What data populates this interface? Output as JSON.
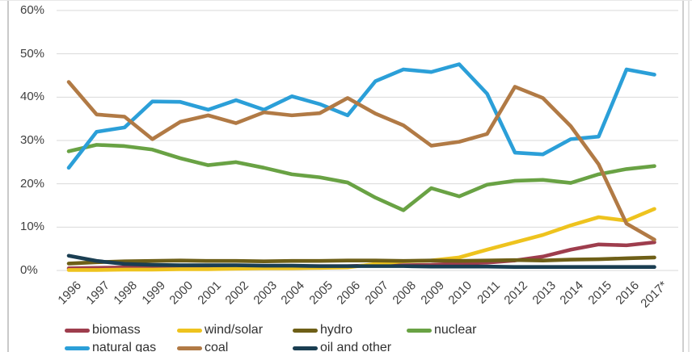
{
  "chart_data": {
    "type": "line",
    "title": "",
    "xlabel": "",
    "ylabel": "",
    "x": [
      "1996",
      "1997",
      "1998",
      "1999",
      "2000",
      "2001",
      "2002",
      "2003",
      "2004",
      "2005",
      "2006",
      "2007",
      "2008",
      "2009",
      "2010",
      "2011",
      "2012",
      "2013",
      "2014",
      "2015",
      "2016",
      "2017*"
    ],
    "ylim": [
      0,
      60
    ],
    "yticks": [
      "0%",
      "10%",
      "20%",
      "30%",
      "40%",
      "50%",
      "60%"
    ],
    "grid": true,
    "legend_position": "bottom",
    "series": [
      {
        "name": "biomass",
        "color": "#9e3d4d",
        "values": [
          0.5,
          0.6,
          0.7,
          0.8,
          0.8,
          0.9,
          0.9,
          1.0,
          1.0,
          1.0,
          1.0,
          1.2,
          1.2,
          1.3,
          1.6,
          1.8,
          2.3,
          3.2,
          4.8,
          6.0,
          5.8,
          6.5
        ]
      },
      {
        "name": "wind/solar",
        "color": "#eec31e",
        "values": [
          0.1,
          0.1,
          0.2,
          0.2,
          0.3,
          0.3,
          0.4,
          0.5,
          0.5,
          0.6,
          0.7,
          1.5,
          2.1,
          2.3,
          3.0,
          4.8,
          6.5,
          8.2,
          10.4,
          12.3,
          11.5,
          14.2
        ]
      },
      {
        "name": "hydro",
        "color": "#6e5f17",
        "values": [
          1.6,
          1.9,
          2.1,
          2.2,
          2.3,
          2.2,
          2.2,
          2.1,
          2.2,
          2.2,
          2.3,
          2.3,
          2.2,
          2.3,
          2.2,
          2.3,
          2.4,
          2.3,
          2.5,
          2.6,
          2.8,
          3.0
        ]
      },
      {
        "name": "nuclear",
        "color": "#69a244",
        "values": [
          27.5,
          29.0,
          28.7,
          27.9,
          25.9,
          24.3,
          25.0,
          23.7,
          22.2,
          21.5,
          20.3,
          16.8,
          13.9,
          19.0,
          17.1,
          19.8,
          20.7,
          20.9,
          20.2,
          22.2,
          23.4,
          24.1
        ]
      },
      {
        "name": "natural gas",
        "color": "#2b9fd8",
        "values": [
          23.7,
          32.0,
          33.0,
          39.0,
          38.9,
          37.1,
          39.3,
          37.1,
          40.2,
          38.4,
          35.8,
          43.7,
          46.4,
          45.8,
          47.6,
          40.8,
          27.2,
          26.8,
          30.3,
          30.9,
          46.4,
          45.2
        ]
      },
      {
        "name": "coal",
        "color": "#b17a45",
        "values": [
          43.5,
          36.0,
          35.5,
          30.3,
          34.3,
          35.8,
          34.0,
          36.5,
          35.8,
          36.3,
          39.8,
          36.2,
          33.5,
          28.8,
          29.7,
          31.5,
          42.4,
          39.8,
          33.3,
          24.5,
          10.8,
          7.1
        ]
      },
      {
        "name": "oil and other",
        "color": "#1a3e52",
        "values": [
          3.4,
          2.2,
          1.5,
          1.3,
          1.2,
          1.2,
          1.2,
          1.1,
          1.1,
          1.0,
          1.0,
          1.0,
          1.0,
          0.9,
          0.9,
          0.9,
          0.8,
          0.8,
          0.8,
          0.8,
          0.8,
          0.8
        ]
      }
    ],
    "legend_rows": [
      [
        "biomass",
        "wind/solar",
        "hydro",
        "nuclear"
      ],
      [
        "natural gas",
        "coal",
        "oil and other"
      ]
    ]
  },
  "style": {
    "gridline_color": "#d9d9d9",
    "axis_text_color": "#3f3f3f"
  }
}
